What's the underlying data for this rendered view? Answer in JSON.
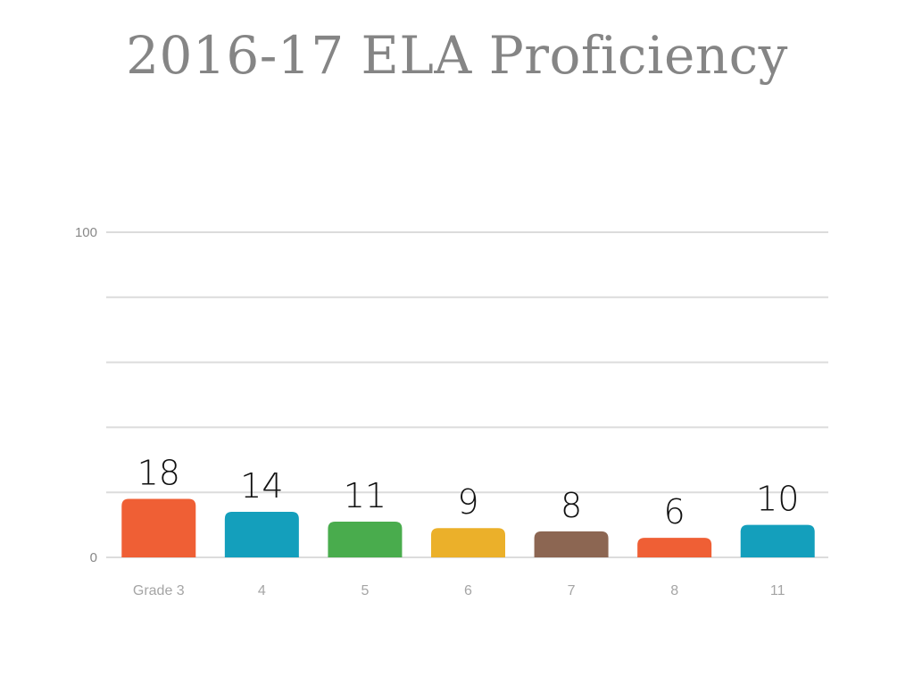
{
  "chart_data": {
    "type": "bar",
    "title": "2016-17 ELA Proficiency",
    "xlabel": "",
    "ylabel": "",
    "categories": [
      "Grade 3",
      "4",
      "5",
      "6",
      "7",
      "8",
      "11"
    ],
    "values": [
      18,
      14,
      11,
      9,
      8,
      6,
      10
    ],
    "data_labels": [
      "18",
      "14",
      "11",
      "9",
      "8",
      "6",
      "10"
    ],
    "colors": [
      "#ef5f35",
      "#149fbc",
      "#49ac4d",
      "#ebb02a",
      "#8c6652",
      "#ef5f35",
      "#149fbc"
    ],
    "ylim": [
      0,
      100
    ],
    "yticks": [
      0,
      20,
      40,
      60,
      80,
      100
    ],
    "ytick_labels": [
      "0",
      "",
      "",
      "",
      "",
      "100"
    ],
    "grid": true,
    "legend": "none"
  }
}
